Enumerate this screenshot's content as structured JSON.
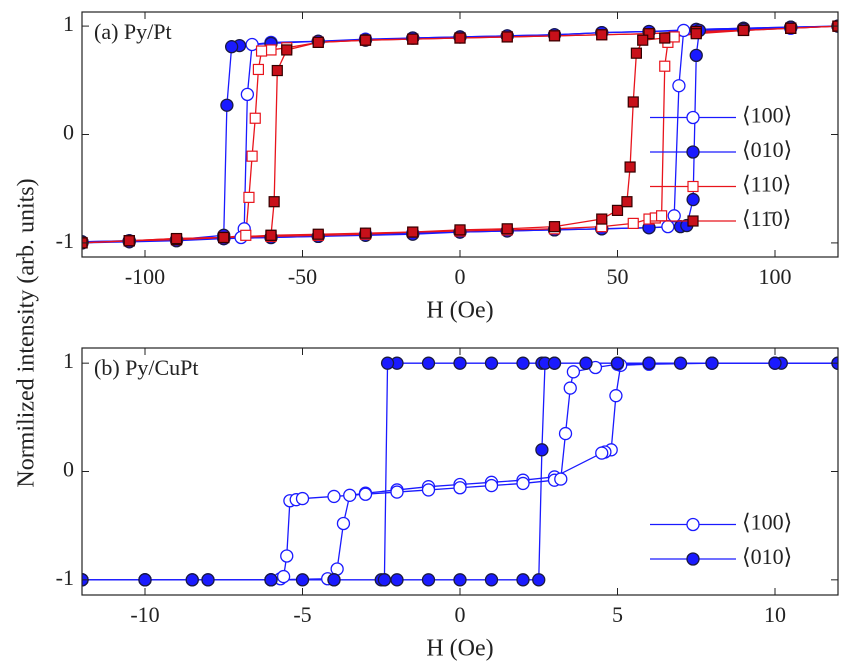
{
  "chart_data": [
    {
      "type": "line",
      "title": "(a) Py/Pt",
      "xlabel": "H (Oe)",
      "ylabel": "Normilized intensity (arb. units)",
      "xlim": [
        -120,
        120
      ],
      "xticks": [
        -100,
        -50,
        0,
        50,
        100
      ],
      "ylim": [
        -1.13,
        1.13
      ],
      "yticks": [
        -1,
        0,
        1
      ],
      "legend": "lower right",
      "series": [
        {
          "name": "⟨100⟩",
          "color": "#1a1aff",
          "marker": "circle",
          "filled": false,
          "x": [
            120,
            105,
            90,
            75,
            60,
            45,
            30,
            15,
            0,
            -15,
            -30,
            -45,
            -60,
            -66,
            -67.5,
            -68.5,
            -69.5,
            -75,
            -90,
            -105,
            -120,
            -120,
            -105,
            -90,
            -75,
            -60,
            -45,
            -30,
            -15,
            0,
            15,
            30,
            45,
            60,
            66,
            68,
            69.5,
            71,
            75,
            90,
            105,
            120
          ],
          "values": [
            1,
            0.98,
            0.97,
            0.96,
            0.95,
            0.94,
            0.92,
            0.91,
            0.9,
            0.89,
            0.88,
            0.86,
            0.85,
            0.83,
            0.37,
            -0.87,
            -0.95,
            -0.96,
            -0.97,
            -0.98,
            -0.99,
            -1,
            -0.98,
            -0.97,
            -0.96,
            -0.95,
            -0.94,
            -0.92,
            -0.91,
            -0.9,
            -0.89,
            -0.88,
            -0.87,
            -0.86,
            -0.85,
            -0.75,
            0.45,
            0.96,
            0.97,
            0.98,
            0.99,
            1
          ]
        },
        {
          "name": "⟨010⟩",
          "color": "#1a1aff",
          "marker": "circle",
          "filled": true,
          "x": [
            120,
            105,
            90,
            75,
            60,
            45,
            30,
            15,
            0,
            -15,
            -30,
            -45,
            -60,
            -70,
            -72.5,
            -74,
            -75,
            -90,
            -105,
            -120,
            -120,
            -105,
            -90,
            -75,
            -60,
            -45,
            -30,
            -15,
            0,
            15,
            30,
            45,
            60,
            70,
            72,
            74,
            75,
            76,
            90,
            105,
            120
          ],
          "values": [
            1,
            0.99,
            0.98,
            0.97,
            0.95,
            0.94,
            0.92,
            0.91,
            0.9,
            0.89,
            0.87,
            0.86,
            0.84,
            0.82,
            0.81,
            0.27,
            -0.93,
            -0.97,
            -0.98,
            -0.99,
            -1,
            -0.99,
            -0.98,
            -0.96,
            -0.95,
            -0.94,
            -0.93,
            -0.92,
            -0.9,
            -0.89,
            -0.88,
            -0.87,
            -0.86,
            -0.85,
            -0.84,
            -0.6,
            0.73,
            0.96,
            0.97,
            0.99,
            1
          ]
        },
        {
          "name": "⟨110⟩",
          "color": "#e8141c",
          "marker": "square",
          "filled": false,
          "x": [
            120,
            105,
            90,
            75,
            60,
            45,
            30,
            15,
            0,
            -15,
            -30,
            -45,
            -55,
            -60,
            -63,
            -64,
            -65,
            -66,
            -67,
            -68,
            -75,
            -90,
            -105,
            -120,
            -120,
            -105,
            -90,
            -75,
            -60,
            -45,
            -30,
            -15,
            0,
            15,
            30,
            45,
            55,
            60,
            62,
            64,
            65,
            66,
            68,
            75,
            90,
            105,
            120
          ],
          "values": [
            1,
            0.98,
            0.96,
            0.95,
            0.93,
            0.92,
            0.91,
            0.9,
            0.89,
            0.88,
            0.87,
            0.85,
            0.8,
            0.78,
            0.77,
            0.6,
            0.15,
            -0.2,
            -0.58,
            -0.93,
            -0.95,
            -0.97,
            -0.98,
            -1,
            -1,
            -0.98,
            -0.96,
            -0.95,
            -0.94,
            -0.93,
            -0.92,
            -0.9,
            -0.89,
            -0.88,
            -0.87,
            -0.85,
            -0.82,
            -0.78,
            -0.77,
            -0.75,
            0.63,
            0.85,
            0.9,
            0.94,
            0.96,
            0.98,
            1
          ]
        },
        {
          "name": "⟨11̄0⟩",
          "color": "#e8141c",
          "marker": "square",
          "filled": true,
          "x": [
            120,
            105,
            90,
            75,
            60,
            45,
            30,
            15,
            0,
            -15,
            -30,
            -45,
            -55,
            -58,
            -59,
            -60,
            -75,
            -90,
            -105,
            -120,
            -120,
            -105,
            -90,
            -75,
            -60,
            -45,
            -30,
            -15,
            0,
            15,
            30,
            45,
            50,
            53,
            54,
            55,
            56,
            58,
            65,
            75,
            90,
            105,
            120
          ],
          "values": [
            1,
            0.98,
            0.96,
            0.95,
            0.93,
            0.92,
            0.91,
            0.9,
            0.89,
            0.88,
            0.87,
            0.85,
            0.78,
            0.59,
            -0.62,
            -0.93,
            -0.95,
            -0.97,
            -0.98,
            -1,
            -1,
            -0.98,
            -0.96,
            -0.95,
            -0.93,
            -0.92,
            -0.91,
            -0.9,
            -0.88,
            -0.87,
            -0.85,
            -0.78,
            -0.7,
            -0.62,
            -0.3,
            0.3,
            0.75,
            0.87,
            0.89,
            0.93,
            0.96,
            0.98,
            1
          ]
        }
      ]
    },
    {
      "type": "line",
      "title": "(b) Py/CuPt",
      "xlabel": "H (Oe)",
      "xlim": [
        -12,
        12
      ],
      "xticks": [
        -10,
        -5,
        0,
        5,
        10
      ],
      "ylim": [
        -1.14,
        1.14
      ],
      "yticks": [
        -1,
        0,
        1
      ],
      "legend": "lower right",
      "series": [
        {
          "name": "⟨100⟩",
          "color": "#1a1aff",
          "marker": "circle",
          "filled": false,
          "x": [
            12,
            10,
            8,
            6,
            5.1,
            4.95,
            4.8,
            4.6,
            4.5,
            3,
            2,
            1,
            0,
            -1,
            -2,
            -3,
            -3.5,
            -3.7,
            -3.9,
            -4.2,
            -6,
            -8.5,
            -10,
            -12,
            -12,
            -10,
            -8,
            -6,
            -5.7,
            -5.6,
            -5.5,
            -5.4,
            -5.2,
            -5,
            -4,
            -3,
            -2,
            -1,
            0,
            1,
            2,
            3,
            3.2,
            3.35,
            3.5,
            3.6,
            4.3,
            5,
            6,
            8,
            10,
            12
          ],
          "values": [
            1,
            1,
            1,
            0.99,
            0.98,
            0.7,
            0.2,
            0.18,
            0.17,
            -0.05,
            -0.08,
            -0.1,
            -0.12,
            -0.14,
            -0.17,
            -0.2,
            -0.22,
            -0.48,
            -0.9,
            -0.99,
            -1,
            -1,
            -1,
            -1,
            -1,
            -1,
            -1,
            -1,
            -0.99,
            -0.97,
            -0.78,
            -0.27,
            -0.26,
            -0.25,
            -0.23,
            -0.21,
            -0.19,
            -0.17,
            -0.15,
            -0.13,
            -0.11,
            -0.08,
            -0.07,
            0.35,
            0.77,
            0.92,
            0.96,
            0.99,
            1,
            1,
            1,
            1
          ]
        },
        {
          "name": "⟨010⟩",
          "color": "#1a1aff",
          "marker": "circle",
          "filled": true,
          "x": [
            12,
            10.2,
            8,
            6,
            5,
            4,
            3,
            2.6,
            2,
            1,
            0,
            -1,
            -2,
            -2.3,
            -2.4,
            -2.5,
            -4,
            -5,
            -6,
            -8.5,
            -10,
            -12,
            -12,
            -10,
            -8,
            -6,
            -4,
            -2.4,
            -2,
            -1,
            0,
            1,
            2,
            2.5,
            2.6,
            2.7,
            3,
            5,
            7,
            10,
            12
          ],
          "values": [
            1,
            1,
            1,
            1,
            1,
            1,
            1,
            1,
            1,
            1,
            1,
            1,
            1,
            1,
            -1,
            -1,
            -1,
            -1,
            -1,
            -1,
            -1,
            -1,
            -1,
            -1,
            -1,
            -1,
            -1,
            -1,
            -1,
            -1,
            -1,
            -1,
            -1,
            -1,
            0.2,
            1,
            1,
            1,
            1,
            1,
            1
          ]
        }
      ]
    }
  ]
}
